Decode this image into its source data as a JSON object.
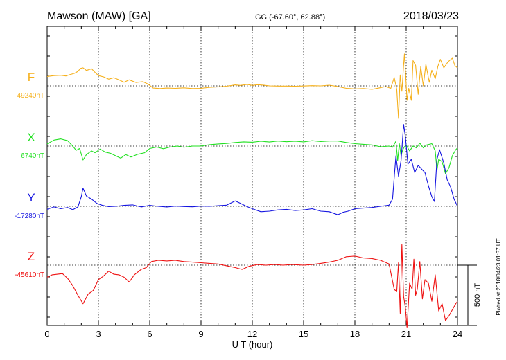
{
  "header": {
    "title": "Mawson (MAW)  [GA]",
    "coords": "GG (-67.60°,  62.88°)",
    "date": "2018/03/23"
  },
  "footer_note": "Plotted at 2018/04/23 01:37 UT",
  "scale_label": "500 nT",
  "chart_data": {
    "type": "line",
    "xlabel": "U T (hour)",
    "xlim": [
      0,
      24
    ],
    "xticks": [
      0,
      3,
      6,
      9,
      12,
      15,
      18,
      21,
      24
    ],
    "grid": true,
    "scale_bar_nT": 500,
    "series": [
      {
        "name": "F",
        "baseline_label": "49240nT",
        "baseline_nT": 49240,
        "color": "#f5b01b",
        "offset_nT": [
          [
            0,
            78
          ],
          [
            0.4,
            85
          ],
          [
            0.8,
            88
          ],
          [
            1.1,
            82
          ],
          [
            1.3,
            92
          ],
          [
            1.6,
            104
          ],
          [
            1.8,
            120
          ],
          [
            1.95,
            145
          ],
          [
            2.1,
            150
          ],
          [
            2.3,
            128
          ],
          [
            2.6,
            142
          ],
          [
            2.8,
            112
          ],
          [
            3.0,
            85
          ],
          [
            3.3,
            75
          ],
          [
            3.6,
            56
          ],
          [
            3.9,
            68
          ],
          [
            4.2,
            50
          ],
          [
            4.5,
            30
          ],
          [
            4.8,
            50
          ],
          [
            5.2,
            28
          ],
          [
            5.6,
            35
          ],
          [
            5.9,
            15
          ],
          [
            6.2,
            -18
          ],
          [
            6.6,
            -22
          ],
          [
            7.0,
            -18
          ],
          [
            7.5,
            -20
          ],
          [
            8.0,
            -16
          ],
          [
            8.5,
            -22
          ],
          [
            9.0,
            -20
          ],
          [
            9.5,
            -12
          ],
          [
            10.0,
            -8
          ],
          [
            10.5,
            -3
          ],
          [
            11.0,
            8
          ],
          [
            11.3,
            4
          ],
          [
            11.7,
            12
          ],
          [
            12.0,
            4
          ],
          [
            12.3,
            10
          ],
          [
            12.7,
            5
          ],
          [
            13.0,
            0
          ],
          [
            13.5,
            -2
          ],
          [
            14.0,
            -2
          ],
          [
            14.5,
            -3
          ],
          [
            15.0,
            -1
          ],
          [
            15.5,
            2
          ],
          [
            16.0,
            0
          ],
          [
            16.5,
            6
          ],
          [
            17.0,
            -5
          ],
          [
            17.5,
            -20
          ],
          [
            18.0,
            -25
          ],
          [
            18.5,
            -22
          ],
          [
            19.0,
            -28
          ],
          [
            19.4,
            -18
          ],
          [
            19.8,
            -6
          ],
          [
            20.1,
            -20
          ],
          [
            20.3,
            70
          ],
          [
            20.45,
            -28
          ],
          [
            20.55,
            -270
          ],
          [
            20.65,
            90
          ],
          [
            20.75,
            -45
          ],
          [
            20.85,
            172
          ],
          [
            20.9,
            265
          ],
          [
            20.95,
            140
          ],
          [
            21.05,
            -120
          ],
          [
            21.15,
            -20
          ],
          [
            21.3,
            -120
          ],
          [
            21.4,
            210
          ],
          [
            21.55,
            170
          ],
          [
            21.7,
            -70
          ],
          [
            21.85,
            160
          ],
          [
            22.0,
            0
          ],
          [
            22.15,
            180
          ],
          [
            22.35,
            30
          ],
          [
            22.5,
            130
          ],
          [
            22.7,
            60
          ],
          [
            22.85,
            160
          ],
          [
            23.0,
            220
          ],
          [
            23.2,
            150
          ],
          [
            23.45,
            200
          ],
          [
            23.7,
            230
          ],
          [
            23.85,
            168
          ],
          [
            24,
            150
          ]
        ]
      },
      {
        "name": "X",
        "baseline_label": "6740nT",
        "baseline_nT": 6740,
        "color": "#22e022",
        "offset_nT": [
          [
            0,
            18
          ],
          [
            0.4,
            50
          ],
          [
            0.8,
            60
          ],
          [
            1.2,
            45
          ],
          [
            1.5,
            0
          ],
          [
            1.7,
            -35
          ],
          [
            1.9,
            -20
          ],
          [
            2.1,
            -115
          ],
          [
            2.3,
            -70
          ],
          [
            2.6,
            -40
          ],
          [
            2.8,
            -55
          ],
          [
            3.1,
            -25
          ],
          [
            3.4,
            -50
          ],
          [
            3.7,
            -60
          ],
          [
            4.0,
            -80
          ],
          [
            4.3,
            -100
          ],
          [
            4.6,
            -70
          ],
          [
            4.9,
            -90
          ],
          [
            5.3,
            -68
          ],
          [
            5.7,
            -55
          ],
          [
            6.0,
            -20
          ],
          [
            6.4,
            -8
          ],
          [
            6.8,
            -22
          ],
          [
            7.2,
            -8
          ],
          [
            7.6,
            0
          ],
          [
            8.0,
            -10
          ],
          [
            8.5,
            0
          ],
          [
            9.0,
            0
          ],
          [
            9.5,
            12
          ],
          [
            10.0,
            18
          ],
          [
            10.5,
            22
          ],
          [
            11.0,
            30
          ],
          [
            11.5,
            35
          ],
          [
            12.0,
            32
          ],
          [
            12.5,
            40
          ],
          [
            13.0,
            34
          ],
          [
            13.5,
            42
          ],
          [
            14.0,
            36
          ],
          [
            14.5,
            40
          ],
          [
            15.0,
            35
          ],
          [
            15.5,
            45
          ],
          [
            16.0,
            38
          ],
          [
            16.5,
            42
          ],
          [
            17.0,
            42
          ],
          [
            17.5,
            30
          ],
          [
            18.0,
            20
          ],
          [
            18.5,
            15
          ],
          [
            19.0,
            10
          ],
          [
            19.5,
            -6
          ],
          [
            20.0,
            0
          ],
          [
            20.2,
            -10
          ],
          [
            20.4,
            40
          ],
          [
            20.5,
            -120
          ],
          [
            20.6,
            20
          ],
          [
            20.7,
            -80
          ],
          [
            20.8,
            -30
          ],
          [
            20.9,
            -6
          ],
          [
            21.0,
            10
          ],
          [
            21.2,
            -40
          ],
          [
            21.4,
            0
          ],
          [
            21.6,
            -15
          ],
          [
            21.8,
            25
          ],
          [
            22.0,
            -15
          ],
          [
            22.2,
            10
          ],
          [
            22.5,
            20
          ],
          [
            22.7,
            -40
          ],
          [
            22.8,
            -200
          ],
          [
            22.9,
            -110
          ],
          [
            23.1,
            -130
          ],
          [
            23.3,
            -230
          ],
          [
            23.5,
            -180
          ],
          [
            23.7,
            -80
          ],
          [
            23.9,
            -30
          ],
          [
            24,
            -15
          ]
        ]
      },
      {
        "name": "Y",
        "baseline_label": "-17280nT",
        "baseline_nT": -17280,
        "color": "#1414e0",
        "offset_nT": [
          [
            0,
            -25
          ],
          [
            0.4,
            -5
          ],
          [
            0.8,
            -20
          ],
          [
            1.2,
            -10
          ],
          [
            1.5,
            -28
          ],
          [
            1.8,
            -5
          ],
          [
            2.0,
            80
          ],
          [
            2.1,
            150
          ],
          [
            2.3,
            85
          ],
          [
            2.6,
            60
          ],
          [
            2.9,
            25
          ],
          [
            3.2,
            10
          ],
          [
            3.6,
            -3
          ],
          [
            4.0,
            0
          ],
          [
            4.5,
            8
          ],
          [
            5.0,
            12
          ],
          [
            5.5,
            -5
          ],
          [
            6.0,
            8
          ],
          [
            6.5,
            0
          ],
          [
            7.0,
            -5
          ],
          [
            7.5,
            2
          ],
          [
            8.0,
            -2
          ],
          [
            8.5,
            -4
          ],
          [
            9.0,
            2
          ],
          [
            9.5,
            0
          ],
          [
            10.0,
            5
          ],
          [
            10.5,
            10
          ],
          [
            11.0,
            45
          ],
          [
            11.3,
            25
          ],
          [
            11.7,
            -3
          ],
          [
            12.0,
            -20
          ],
          [
            12.5,
            -45
          ],
          [
            13.0,
            -40
          ],
          [
            13.5,
            -30
          ],
          [
            14.0,
            -25
          ],
          [
            14.5,
            -35
          ],
          [
            15.0,
            -30
          ],
          [
            15.5,
            -20
          ],
          [
            16.0,
            -40
          ],
          [
            16.5,
            -45
          ],
          [
            17.0,
            -70
          ],
          [
            17.3,
            -50
          ],
          [
            17.6,
            -40
          ],
          [
            18.0,
            -20
          ],
          [
            18.5,
            -15
          ],
          [
            19.0,
            -10
          ],
          [
            19.5,
            0
          ],
          [
            20.0,
            10
          ],
          [
            20.2,
            60
          ],
          [
            20.4,
            420
          ],
          [
            20.55,
            250
          ],
          [
            20.7,
            380
          ],
          [
            20.85,
            680
          ],
          [
            20.95,
            580
          ],
          [
            21.1,
            350
          ],
          [
            21.3,
            390
          ],
          [
            21.5,
            280
          ],
          [
            21.7,
            340
          ],
          [
            21.9,
            310
          ],
          [
            22.1,
            280
          ],
          [
            22.3,
            170
          ],
          [
            22.5,
            80
          ],
          [
            22.65,
            40
          ],
          [
            22.8,
            390
          ],
          [
            22.95,
            470
          ],
          [
            23.2,
            360
          ],
          [
            23.4,
            220
          ],
          [
            23.6,
            160
          ],
          [
            23.8,
            60
          ],
          [
            24,
            0
          ]
        ]
      },
      {
        "name": "Z",
        "baseline_label": "-45610nT",
        "baseline_nT": -45610,
        "color": "#ee1111",
        "offset_nT": [
          [
            0,
            -100
          ],
          [
            0.3,
            -80
          ],
          [
            0.6,
            -75
          ],
          [
            0.9,
            -70
          ],
          [
            1.2,
            -110
          ],
          [
            1.5,
            -170
          ],
          [
            1.8,
            -250
          ],
          [
            2.1,
            -320
          ],
          [
            2.4,
            -240
          ],
          [
            2.7,
            -210
          ],
          [
            3.0,
            -120
          ],
          [
            3.3,
            -90
          ],
          [
            3.6,
            -50
          ],
          [
            3.9,
            -75
          ],
          [
            4.2,
            -80
          ],
          [
            4.5,
            -100
          ],
          [
            4.8,
            -140
          ],
          [
            5.1,
            -80
          ],
          [
            5.5,
            -35
          ],
          [
            5.8,
            -20
          ],
          [
            6.1,
            30
          ],
          [
            6.5,
            40
          ],
          [
            7.0,
            35
          ],
          [
            7.5,
            40
          ],
          [
            8.0,
            30
          ],
          [
            8.5,
            25
          ],
          [
            9.0,
            20
          ],
          [
            9.5,
            15
          ],
          [
            10.0,
            10
          ],
          [
            10.5,
            -5
          ],
          [
            11.0,
            -20
          ],
          [
            11.4,
            -35
          ],
          [
            11.8,
            -10
          ],
          [
            12.3,
            5
          ],
          [
            12.8,
            0
          ],
          [
            13.3,
            5
          ],
          [
            13.8,
            0
          ],
          [
            14.3,
            5
          ],
          [
            15.0,
            0
          ],
          [
            15.5,
            5
          ],
          [
            16.0,
            15
          ],
          [
            16.5,
            25
          ],
          [
            17.0,
            40
          ],
          [
            17.5,
            70
          ],
          [
            18.0,
            75
          ],
          [
            18.5,
            60
          ],
          [
            19.0,
            55
          ],
          [
            19.5,
            40
          ],
          [
            20.0,
            10
          ],
          [
            20.3,
            -200
          ],
          [
            20.45,
            -220
          ],
          [
            20.55,
            20
          ],
          [
            20.65,
            -400
          ],
          [
            20.75,
            170
          ],
          [
            20.85,
            -260
          ],
          [
            20.95,
            -350
          ],
          [
            21.05,
            -520
          ],
          [
            21.2,
            -150
          ],
          [
            21.35,
            -200
          ],
          [
            21.45,
            50
          ],
          [
            21.55,
            -250
          ],
          [
            21.65,
            -200
          ],
          [
            21.8,
            30
          ],
          [
            21.95,
            -280
          ],
          [
            22.1,
            -120
          ],
          [
            22.3,
            -150
          ],
          [
            22.5,
            -300
          ],
          [
            22.7,
            -80
          ],
          [
            22.9,
            -380
          ],
          [
            23.1,
            -320
          ],
          [
            23.3,
            -460
          ],
          [
            23.5,
            -420
          ],
          [
            23.7,
            -370
          ],
          [
            23.9,
            -320
          ],
          [
            24,
            -300
          ]
        ]
      }
    ]
  }
}
